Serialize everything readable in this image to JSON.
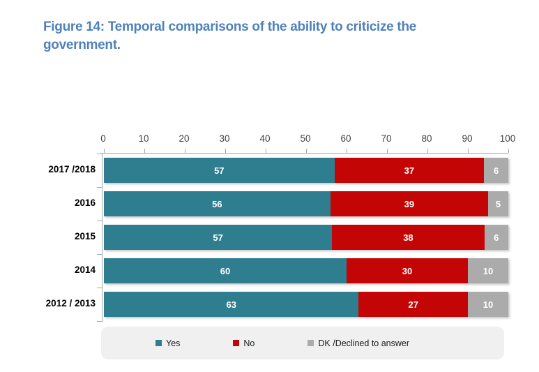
{
  "title": "Figure 14: Temporal comparisons of the ability to criticize the government.",
  "colors": {
    "title": "#4F81BD",
    "axis": "#a6a6a6",
    "legend_bg": "#F0F0F1",
    "yes": "#2F7E8F",
    "no": "#C40505",
    "dk": "#ABABAB"
  },
  "chart_data": {
    "type": "bar",
    "orientation": "horizontal",
    "stacked": true,
    "title": "Figure 14: Temporal comparisons of the ability to criticize the government.",
    "categories": [
      "2017 /2018",
      "2016",
      "2015",
      "2014",
      "2012 / 2013"
    ],
    "series": [
      {
        "key": "yes",
        "name": "Yes",
        "color": "#2F7E8F",
        "values": [
          57,
          56,
          57,
          60,
          63
        ]
      },
      {
        "key": "no",
        "name": "No",
        "color": "#C40505",
        "values": [
          37,
          39,
          38,
          30,
          27
        ]
      },
      {
        "key": "dk",
        "name": "DK /Declined to answer",
        "color": "#ABABAB",
        "values": [
          6,
          5,
          6,
          10,
          10
        ]
      }
    ],
    "xlim": [
      0,
      100
    ],
    "x_ticks": [
      0,
      10,
      20,
      30,
      40,
      50,
      60,
      70,
      80,
      90,
      100
    ],
    "xlabel": "",
    "ylabel": "",
    "grid": false,
    "legend_position": "bottom",
    "value_label_color": "#ffffff"
  }
}
